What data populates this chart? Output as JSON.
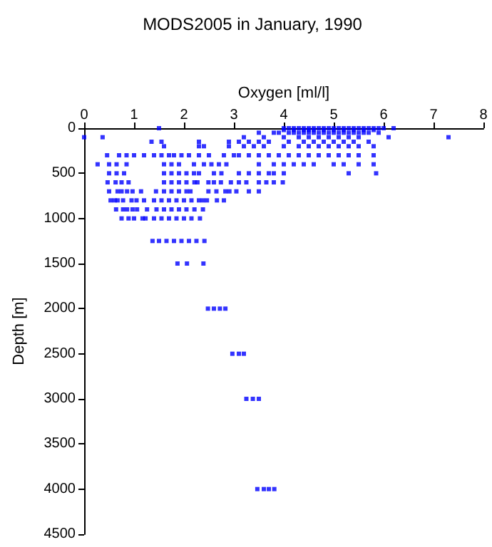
{
  "chart_data": {
    "type": "scatter",
    "title": "MODS2005 in January, 1990",
    "xlabel": "Oxygen [ml/l]",
    "ylabel": "Depth [m]",
    "xlim": [
      0,
      8
    ],
    "xticks": [
      0,
      1,
      2,
      3,
      4,
      5,
      6,
      7,
      8
    ],
    "ylim": [
      4500,
      0
    ],
    "yticks": [
      0,
      500,
      1000,
      1500,
      2000,
      2500,
      3000,
      3500,
      4000,
      4500
    ],
    "grid": false,
    "marker": "square",
    "series": [
      {
        "color": "#0000ff",
        "x": [
          1.5,
          4.0,
          4.1,
          4.2,
          4.3,
          4.4,
          4.5,
          4.6,
          4.7,
          4.8,
          4.9,
          5.0,
          5.1,
          5.2,
          5.3,
          5.4,
          5.5,
          5.6,
          5.7,
          5.8,
          5.9,
          6.0,
          6.2,
          4.0,
          4.2,
          4.4,
          4.5,
          4.6,
          4.8,
          5.0,
          5.2,
          5.4,
          5.6,
          5.8,
          3.8,
          4.1,
          4.3,
          4.5,
          4.7,
          4.9,
          5.1,
          5.3,
          5.5,
          5.7,
          3.5,
          3.9,
          4.2,
          4.4,
          4.6,
          4.8,
          5.0,
          5.2,
          5.4,
          5.6,
          5.9,
          0.0,
          0.37,
          3.2,
          3.6,
          4.0,
          4.3,
          4.5,
          4.7,
          4.9,
          5.1,
          5.3,
          5.5,
          6.1,
          7.3,
          1.35,
          1.55,
          2.3,
          2.9,
          3.1,
          3.3,
          3.5,
          3.7,
          4.1,
          4.4,
          4.6,
          4.8,
          5.0,
          5.2,
          5.4,
          5.7,
          1.6,
          2.3,
          2.4,
          2.9,
          3.2,
          3.4,
          3.6,
          4.0,
          4.3,
          4.5,
          4.7,
          4.9,
          5.1,
          5.3,
          5.5,
          5.8,
          0.46,
          0.7,
          0.85,
          1.0,
          1.2,
          1.4,
          1.55,
          1.7,
          1.8,
          1.95,
          2.1,
          2.3,
          2.5,
          2.8,
          3.0,
          3.1,
          3.3,
          3.5,
          3.7,
          3.9,
          4.1,
          4.3,
          4.5,
          4.7,
          4.9,
          5.1,
          5.3,
          5.5,
          5.8,
          0.27,
          0.5,
          0.65,
          0.85,
          1.6,
          1.75,
          1.9,
          2.2,
          2.4,
          2.55,
          2.7,
          2.85,
          3.5,
          3.8,
          4.0,
          4.2,
          4.4,
          4.6,
          5.0,
          5.2,
          5.5,
          5.8,
          0.5,
          0.65,
          0.8,
          1.6,
          1.75,
          1.9,
          2.05,
          2.2,
          2.3,
          2.6,
          2.75,
          3.1,
          3.3,
          3.5,
          3.7,
          3.8,
          4.0,
          5.3,
          5.85,
          0.47,
          0.63,
          0.75,
          0.89,
          1.6,
          1.75,
          1.9,
          2.05,
          2.21,
          2.27,
          2.49,
          2.6,
          2.74,
          2.94,
          3.1,
          3.25,
          3.5,
          3.65,
          3.8,
          3.98,
          0.5,
          0.67,
          0.75,
          0.86,
          0.97,
          1.14,
          1.44,
          1.6,
          1.75,
          1.9,
          2.05,
          2.13,
          2.49,
          2.65,
          2.83,
          2.91,
          3.05,
          3.3,
          3.5,
          0.53,
          0.61,
          0.67,
          0.78,
          0.95,
          1.05,
          1.2,
          1.4,
          1.55,
          1.7,
          1.85,
          2.0,
          2.15,
          2.3,
          2.38,
          2.46,
          2.66,
          2.8,
          0.64,
          0.78,
          0.86,
          0.97,
          1.06,
          1.26,
          1.45,
          1.6,
          1.75,
          1.9,
          2.05,
          2.21,
          2.38,
          0.75,
          0.89,
          1.0,
          1.17,
          1.23,
          1.4,
          1.55,
          1.7,
          1.85,
          2.0,
          2.15,
          2.32,
          1.37,
          1.5,
          1.65,
          1.8,
          1.95,
          2.1,
          2.25,
          2.41,
          1.87,
          2.06,
          2.39,
          2.48,
          2.6,
          2.72,
          2.83,
          2.97,
          3.1,
          3.2,
          3.25,
          3.38,
          3.5,
          3.47,
          3.6,
          3.7,
          3.81
        ],
        "values": [
          0,
          0,
          0,
          0,
          0,
          0,
          0,
          0,
          0,
          0,
          0,
          0,
          0,
          0,
          0,
          0,
          0,
          0,
          0,
          0,
          0,
          0,
          0,
          20,
          20,
          20,
          20,
          20,
          20,
          20,
          20,
          20,
          20,
          20,
          50,
          50,
          50,
          50,
          50,
          50,
          50,
          50,
          50,
          50,
          50,
          50,
          50,
          50,
          50,
          50,
          50,
          50,
          50,
          50,
          50,
          100,
          100,
          100,
          100,
          100,
          100,
          100,
          100,
          100,
          100,
          100,
          100,
          100,
          100,
          150,
          150,
          150,
          150,
          150,
          150,
          150,
          150,
          150,
          150,
          150,
          150,
          150,
          150,
          150,
          150,
          200,
          200,
          200,
          200,
          200,
          200,
          200,
          200,
          200,
          200,
          200,
          200,
          200,
          200,
          200,
          200,
          300,
          300,
          300,
          300,
          300,
          300,
          300,
          300,
          300,
          300,
          300,
          300,
          300,
          300,
          300,
          300,
          300,
          300,
          300,
          300,
          300,
          300,
          300,
          300,
          300,
          300,
          300,
          300,
          300,
          400,
          400,
          400,
          400,
          400,
          400,
          400,
          400,
          400,
          400,
          400,
          400,
          400,
          400,
          400,
          400,
          400,
          400,
          400,
          400,
          400,
          400,
          500,
          500,
          500,
          500,
          500,
          500,
          500,
          500,
          500,
          500,
          500,
          500,
          500,
          500,
          500,
          500,
          500,
          500,
          500,
          600,
          600,
          600,
          600,
          600,
          600,
          600,
          600,
          600,
          600,
          600,
          600,
          600,
          600,
          600,
          600,
          600,
          600,
          600,
          600,
          700,
          700,
          700,
          700,
          700,
          700,
          700,
          700,
          700,
          700,
          700,
          700,
          700,
          700,
          700,
          700,
          700,
          700,
          700,
          800,
          800,
          800,
          800,
          800,
          800,
          800,
          800,
          800,
          800,
          800,
          800,
          800,
          800,
          800,
          800,
          800,
          800,
          900,
          900,
          900,
          900,
          900,
          900,
          900,
          900,
          900,
          900,
          900,
          900,
          900,
          1000,
          1000,
          1000,
          1000,
          1000,
          1000,
          1000,
          1000,
          1000,
          1000,
          1000,
          1000,
          1250,
          1250,
          1250,
          1250,
          1250,
          1250,
          1250,
          1250,
          1500,
          1500,
          1500,
          2000,
          2000,
          2000,
          2000,
          2500,
          2500,
          2500,
          3000,
          3000,
          3000,
          4000,
          4000,
          4000,
          4000
        ]
      }
    ]
  }
}
